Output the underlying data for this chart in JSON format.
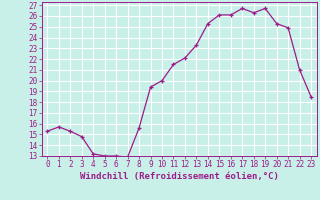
{
  "x": [
    0,
    1,
    2,
    3,
    4,
    5,
    6,
    7,
    8,
    9,
    10,
    11,
    12,
    13,
    14,
    15,
    16,
    17,
    18,
    19,
    20,
    21,
    22,
    23
  ],
  "y": [
    15.3,
    15.7,
    15.3,
    14.8,
    13.2,
    13.0,
    13.0,
    12.9,
    15.6,
    19.4,
    20.0,
    21.5,
    22.1,
    23.3,
    25.3,
    26.1,
    26.1,
    26.7,
    26.3,
    26.7,
    25.3,
    24.9,
    21.0,
    18.5
  ],
  "line_color": "#9b1d8a",
  "marker": "+",
  "bg_color": "#c8f0e8",
  "grid_color": "#ffffff",
  "ylabel_values": [
    13,
    14,
    15,
    16,
    17,
    18,
    19,
    20,
    21,
    22,
    23,
    24,
    25,
    26,
    27
  ],
  "xlabel": "Windchill (Refroidissement éolien,°C)",
  "ylim": [
    13,
    27
  ],
  "xlim": [
    -0.5,
    23.5
  ],
  "xlabel_color": "#9b1d8a",
  "tick_color": "#9b1d8a",
  "spine_color": "#9b1d8a",
  "label_fontsize": 6.5,
  "tick_fontsize": 5.5
}
